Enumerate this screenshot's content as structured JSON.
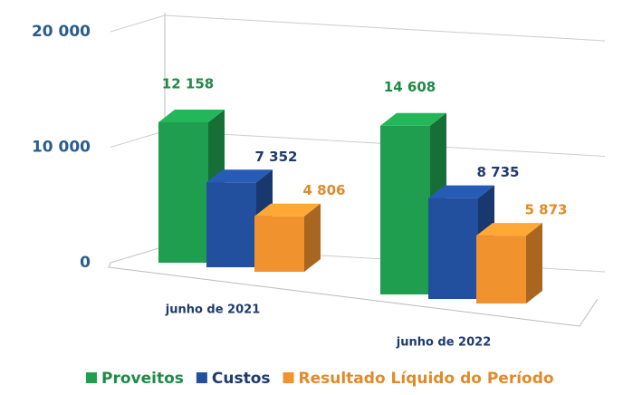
{
  "chart_data": {
    "type": "bar3d",
    "categories": [
      "junho de 2021",
      "junho de 2022"
    ],
    "series": [
      {
        "name": "Proveitos",
        "color": "#1f9e4f",
        "values": [
          12158,
          14608
        ],
        "value_labels": [
          "12 158",
          "14 608"
        ]
      },
      {
        "name": "Custos",
        "color": "#22509e",
        "values": [
          7352,
          8735
        ],
        "value_labels": [
          "7 352",
          "8 735"
        ]
      },
      {
        "name": "Resultado Líquido do Período",
        "color": "#f0922e",
        "values": [
          4806,
          5873
        ],
        "value_labels": [
          "4 806",
          "5 873"
        ]
      }
    ],
    "ylim": [
      0,
      20000
    ],
    "yticks": [
      0,
      {
        "value": 10000,
        "label": "10 000"
      },
      {
        "value": 20000,
        "label": "20 000"
      }
    ],
    "grid": true,
    "legend": "bottom"
  }
}
